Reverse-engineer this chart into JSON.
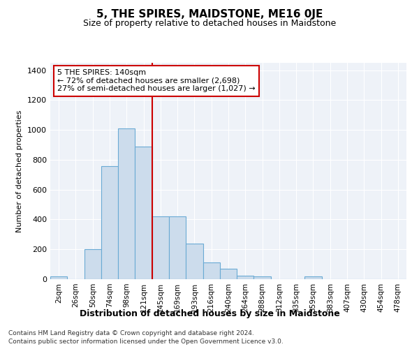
{
  "title": "5, THE SPIRES, MAIDSTONE, ME16 0JE",
  "subtitle": "Size of property relative to detached houses in Maidstone",
  "xlabel": "Distribution of detached houses by size in Maidstone",
  "ylabel": "Number of detached properties",
  "footnote1": "Contains HM Land Registry data © Crown copyright and database right 2024.",
  "footnote2": "Contains public sector information licensed under the Open Government Licence v3.0.",
  "annotation_line1": "5 THE SPIRES: 140sqm",
  "annotation_line2": "← 72% of detached houses are smaller (2,698)",
  "annotation_line3": "27% of semi-detached houses are larger (1,027) →",
  "bar_color": "#ccdcec",
  "bar_edge_color": "#6aaad4",
  "vline_color": "#cc0000",
  "background_color": "#eef2f8",
  "categories": [
    "2sqm",
    "26sqm",
    "50sqm",
    "74sqm",
    "98sqm",
    "121sqm",
    "145sqm",
    "169sqm",
    "193sqm",
    "216sqm",
    "240sqm",
    "264sqm",
    "288sqm",
    "312sqm",
    "335sqm",
    "359sqm",
    "383sqm",
    "407sqm",
    "430sqm",
    "454sqm",
    "478sqm"
  ],
  "values": [
    20,
    0,
    200,
    760,
    1010,
    890,
    420,
    420,
    240,
    110,
    70,
    25,
    20,
    0,
    0,
    20,
    0,
    0,
    0,
    0,
    0
  ],
  "ylim": [
    0,
    1450
  ],
  "yticks": [
    0,
    200,
    400,
    600,
    800,
    1000,
    1200,
    1400
  ]
}
